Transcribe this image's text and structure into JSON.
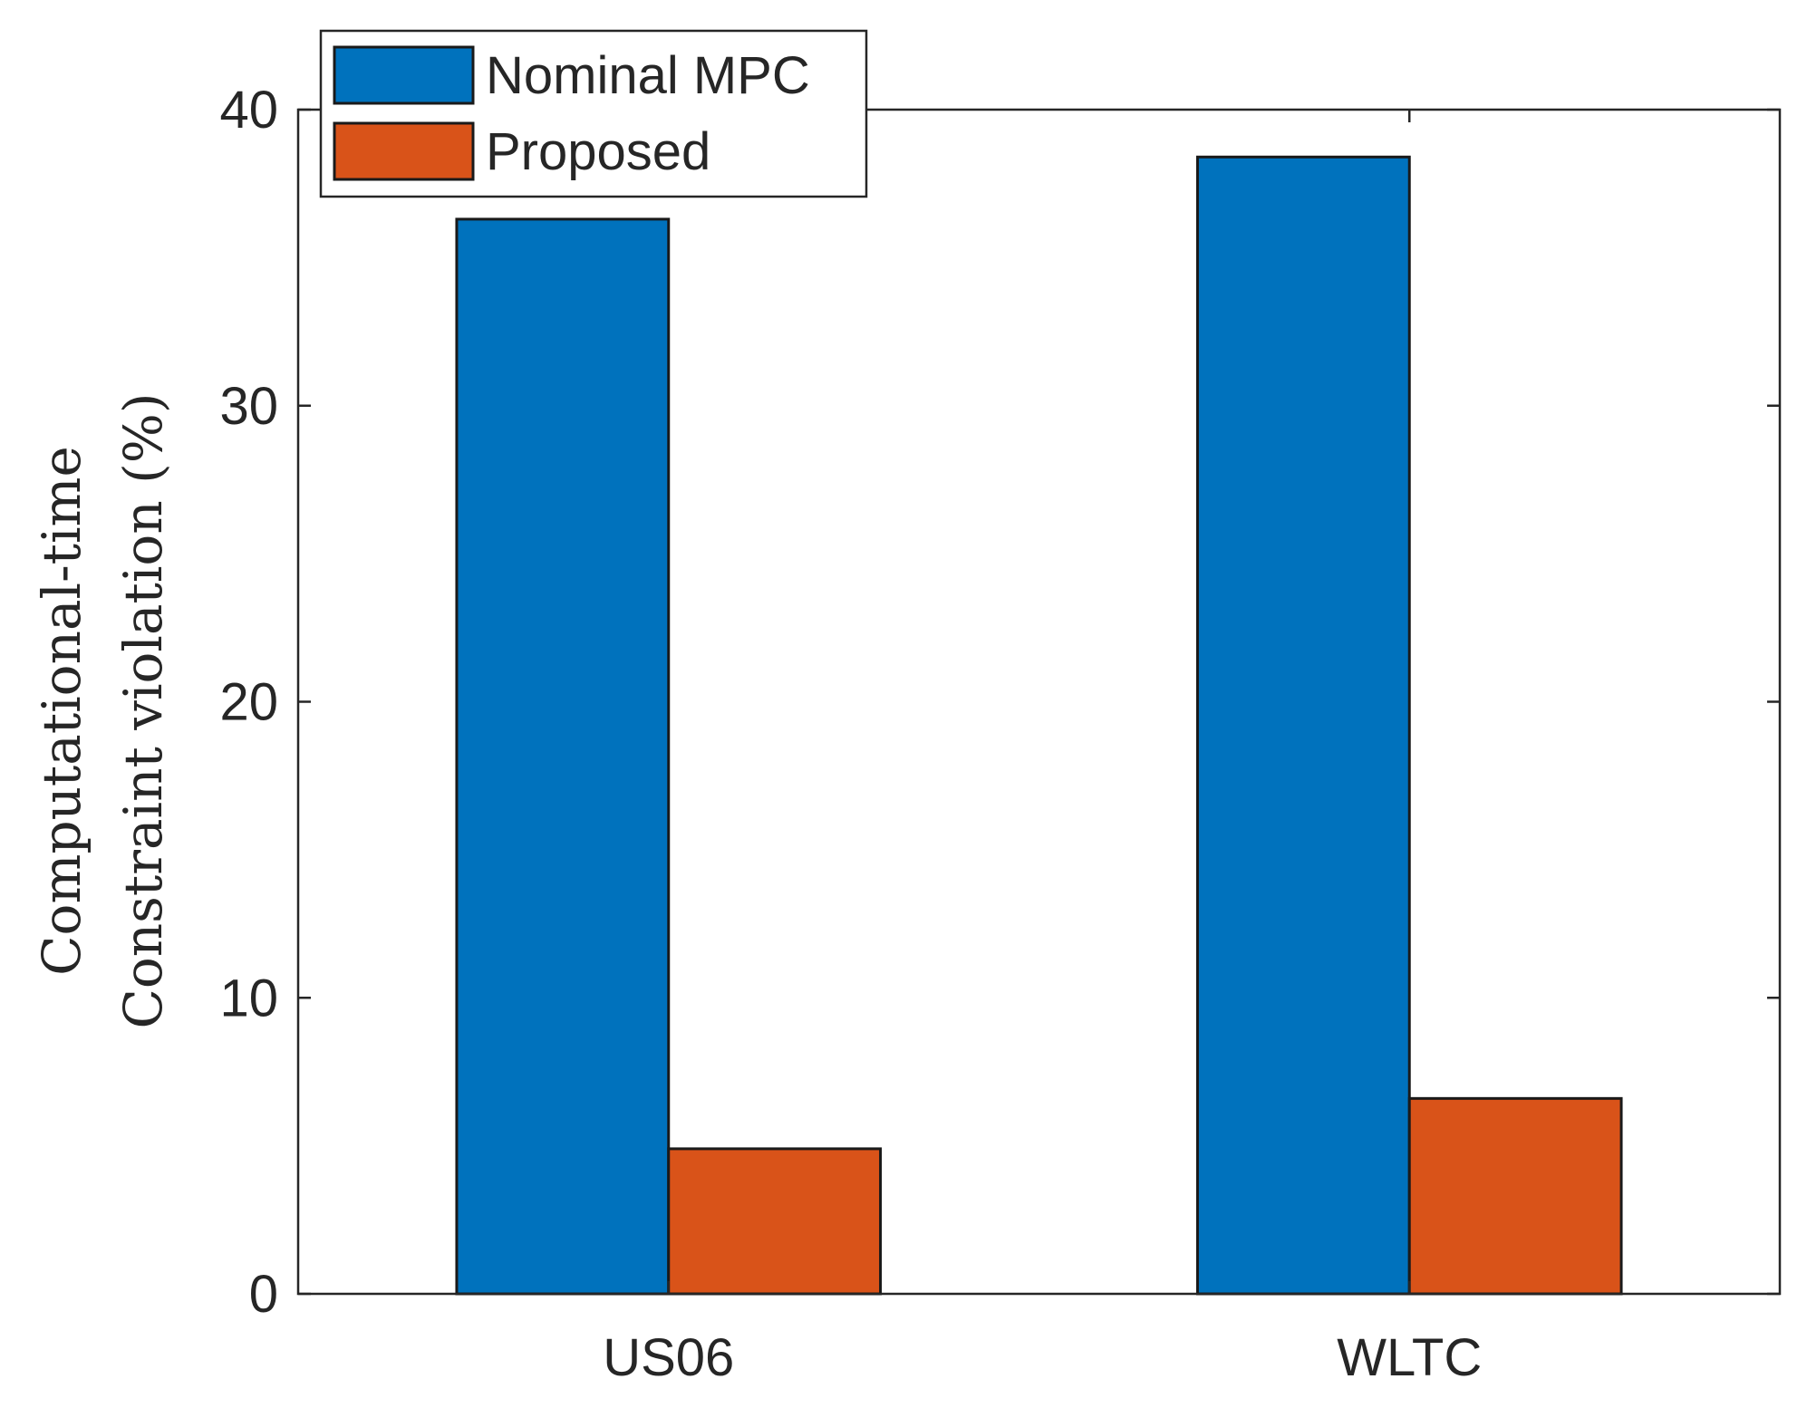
{
  "chart_data": {
    "type": "bar",
    "categories": [
      "US06",
      "WLTC"
    ],
    "series": [
      {
        "name": "Nominal MPC",
        "values": [
          36.3,
          38.4
        ],
        "color": "#0072BD"
      },
      {
        "name": "Proposed",
        "values": [
          4.9,
          6.6
        ],
        "color": "#D95319"
      }
    ],
    "ylim": [
      0,
      40
    ],
    "yticks": [
      0,
      10,
      20,
      30,
      40
    ],
    "ylabel_lines": [
      "Computational-time",
      "Constraint violation (%)"
    ],
    "xlabel": "",
    "title": "",
    "legend_position": "top-left",
    "grid": false
  }
}
